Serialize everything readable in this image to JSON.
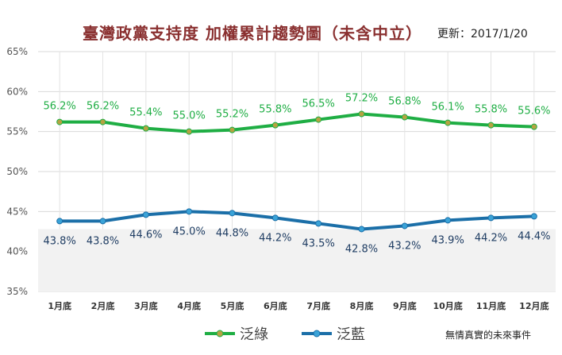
{
  "chart_data": {
    "type": "line",
    "title": "臺灣政黨支持度 加權累計趨勢圖（未含中立）",
    "subtitle": "更新：2017/1/20",
    "categories": [
      "1月底",
      "2月底",
      "3月底",
      "4月底",
      "5月底",
      "6月底",
      "7月底",
      "8月底",
      "9月底",
      "10月底",
      "11月底",
      "12月底"
    ],
    "y_ticks": [
      "35%",
      "40%",
      "45%",
      "50%",
      "55%",
      "60%",
      "65%"
    ],
    "ylim": [
      35,
      65
    ],
    "series": [
      {
        "name": "泛綠",
        "color": "#1fae44",
        "marker_color": "#b5a342",
        "values": [
          56.2,
          56.2,
          55.4,
          55.0,
          55.2,
          55.8,
          56.5,
          57.2,
          56.8,
          56.1,
          55.8,
          55.6
        ],
        "labels": [
          "56.2%",
          "56.2%",
          "55.4%",
          "55.0%",
          "55.2%",
          "55.8%",
          "56.5%",
          "57.2%",
          "56.8%",
          "56.1%",
          "55.8%",
          "55.6%"
        ]
      },
      {
        "name": "泛藍",
        "color": "#1b6fa8",
        "marker_color": "#3aa3d8",
        "values": [
          43.8,
          43.8,
          44.6,
          45.0,
          44.8,
          44.2,
          43.5,
          42.8,
          43.2,
          43.9,
          44.2,
          44.4
        ],
        "labels": [
          "43.8%",
          "43.8%",
          "44.6%",
          "45.0%",
          "44.8%",
          "44.2%",
          "43.5%",
          "42.8%",
          "43.2%",
          "43.9%",
          "44.2%",
          "44.4%"
        ]
      }
    ],
    "grid": true,
    "legend_position": "bottom",
    "shaded_band_below": 42.8
  },
  "credit": "無情真實的未來事件"
}
